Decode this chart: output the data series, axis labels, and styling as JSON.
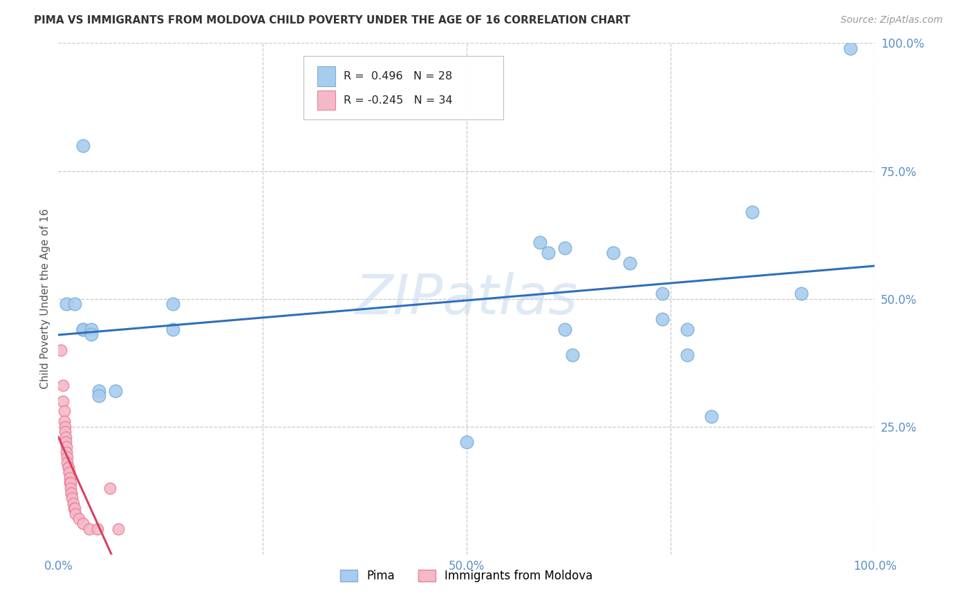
{
  "title": "PIMA VS IMMIGRANTS FROM MOLDOVA CHILD POVERTY UNDER THE AGE OF 16 CORRELATION CHART",
  "source": "Source: ZipAtlas.com",
  "ylabel": "Child Poverty Under the Age of 16",
  "xlim": [
    0.0,
    1.0
  ],
  "ylim": [
    0.0,
    1.0
  ],
  "xticks": [
    0.0,
    0.25,
    0.5,
    0.75,
    1.0
  ],
  "xtick_labels": [
    "0.0%",
    "",
    "50.0%",
    "",
    "100.0%"
  ],
  "yticks": [
    0.25,
    0.5,
    0.75,
    1.0
  ],
  "ytick_labels": [
    "25.0%",
    "50.0%",
    "75.0%",
    "100.0%"
  ],
  "pima_color": "#a8ccee",
  "pima_edge_color": "#7aaed8",
  "moldova_color": "#f5b8c8",
  "moldova_edge_color": "#e8809a",
  "trendline_pima_color": "#2c6fbe",
  "trendline_moldova_color": "#d84060",
  "background_color": "#ffffff",
  "grid_color": "#c8c8c8",
  "watermark": "ZIPatlas",
  "legend_R_pima": "R =  0.496",
  "legend_N_pima": "N = 28",
  "legend_R_moldova": "R = -0.245",
  "legend_N_moldova": "N = 34",
  "tick_color": "#5a8ec8",
  "pima_points": [
    [
      0.03,
      0.8
    ],
    [
      0.01,
      0.49
    ],
    [
      0.02,
      0.49
    ],
    [
      0.03,
      0.44
    ],
    [
      0.03,
      0.44
    ],
    [
      0.04,
      0.44
    ],
    [
      0.04,
      0.43
    ],
    [
      0.05,
      0.32
    ],
    [
      0.05,
      0.31
    ],
    [
      0.07,
      0.32
    ],
    [
      0.14,
      0.49
    ],
    [
      0.14,
      0.44
    ],
    [
      0.5,
      0.22
    ],
    [
      0.59,
      0.61
    ],
    [
      0.6,
      0.59
    ],
    [
      0.62,
      0.44
    ],
    [
      0.62,
      0.6
    ],
    [
      0.63,
      0.39
    ],
    [
      0.68,
      0.59
    ],
    [
      0.7,
      0.57
    ],
    [
      0.74,
      0.51
    ],
    [
      0.74,
      0.46
    ],
    [
      0.77,
      0.44
    ],
    [
      0.77,
      0.39
    ],
    [
      0.8,
      0.27
    ],
    [
      0.85,
      0.67
    ],
    [
      0.91,
      0.51
    ],
    [
      0.97,
      0.99
    ]
  ],
  "moldova_points": [
    [
      0.003,
      0.4
    ],
    [
      0.006,
      0.33
    ],
    [
      0.006,
      0.3
    ],
    [
      0.007,
      0.28
    ],
    [
      0.007,
      0.26
    ],
    [
      0.008,
      0.25
    ],
    [
      0.008,
      0.24
    ],
    [
      0.009,
      0.23
    ],
    [
      0.009,
      0.22
    ],
    [
      0.01,
      0.21
    ],
    [
      0.01,
      0.2
    ],
    [
      0.011,
      0.19
    ],
    [
      0.011,
      0.18
    ],
    [
      0.012,
      0.17
    ],
    [
      0.012,
      0.17
    ],
    [
      0.013,
      0.16
    ],
    [
      0.013,
      0.16
    ],
    [
      0.014,
      0.15
    ],
    [
      0.014,
      0.14
    ],
    [
      0.015,
      0.14
    ],
    [
      0.015,
      0.13
    ],
    [
      0.016,
      0.12
    ],
    [
      0.016,
      0.12
    ],
    [
      0.017,
      0.11
    ],
    [
      0.018,
      0.1
    ],
    [
      0.019,
      0.09
    ],
    [
      0.02,
      0.09
    ],
    [
      0.021,
      0.08
    ],
    [
      0.025,
      0.07
    ],
    [
      0.03,
      0.06
    ],
    [
      0.038,
      0.05
    ],
    [
      0.048,
      0.05
    ],
    [
      0.063,
      0.13
    ],
    [
      0.073,
      0.05
    ]
  ]
}
